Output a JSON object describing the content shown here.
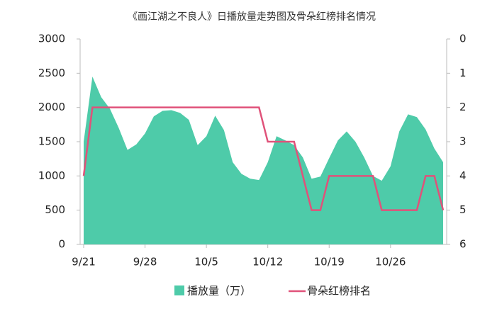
{
  "chart_data": {
    "type": "area-line",
    "title": "《画江湖之不良人》日播放量走势图及骨朵红榜排名情况",
    "categories": [
      "9/21",
      null,
      null,
      null,
      null,
      null,
      null,
      "9/28",
      null,
      null,
      null,
      null,
      null,
      null,
      "10/5",
      null,
      null,
      null,
      null,
      null,
      null,
      "10/12",
      null,
      null,
      null,
      null,
      null,
      null,
      "10/19",
      null,
      null,
      null,
      null,
      null,
      null,
      "10/26",
      null,
      null,
      null,
      null,
      null,
      null
    ],
    "series": [
      {
        "name": "播放量（万）",
        "color": "#4ecba9",
        "values": [
          1500,
          2450,
          2150,
          1980,
          1700,
          1380,
          1460,
          1620,
          1870,
          1950,
          1960,
          1920,
          1820,
          1450,
          1580,
          1880,
          1670,
          1200,
          1030,
          960,
          940,
          1200,
          1580,
          1520,
          1450,
          1270,
          960,
          990,
          1260,
          1520,
          1650,
          1500,
          1270,
          1000,
          930,
          1140,
          1650,
          1900,
          1860,
          1680,
          1400,
          1200
        ]
      },
      {
        "name": "骨朵红榜排名",
        "color": "#e0527a",
        "axis": "y2",
        "values": [
          4,
          2,
          2,
          2,
          2,
          2,
          2,
          2,
          2,
          2,
          2,
          2,
          2,
          2,
          2,
          2,
          2,
          2,
          2,
          2,
          2,
          3,
          3,
          3,
          3,
          4,
          5,
          5,
          4,
          4,
          4,
          4,
          4,
          4,
          5,
          5,
          5,
          5,
          5,
          4,
          4,
          5
        ]
      }
    ],
    "ylim": [
      0,
      3000
    ],
    "yticks": [
      0,
      500,
      1000,
      1500,
      2000,
      2500,
      3000
    ],
    "y2lim": [
      6,
      0
    ],
    "y2ticks": [
      0,
      1,
      2,
      3,
      4,
      5,
      6
    ]
  }
}
